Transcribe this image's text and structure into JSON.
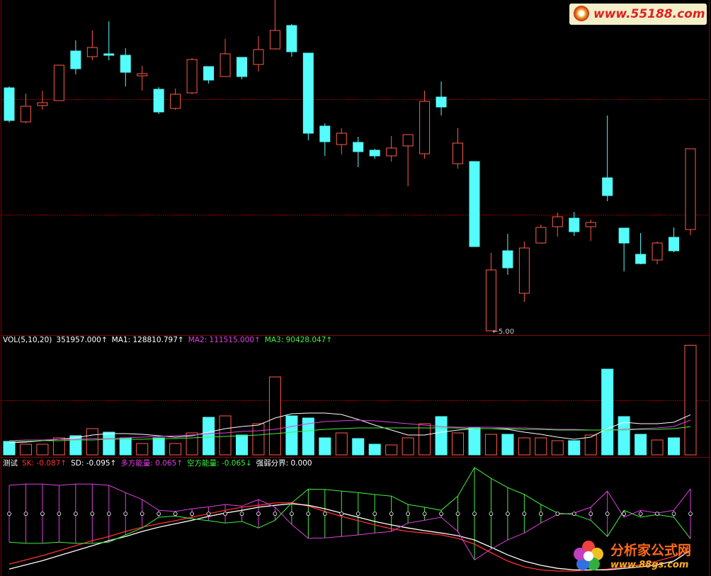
{
  "chart_data": [
    {
      "type": "candlestick",
      "annotation": "←5.00",
      "up_color": "#ff5a4a",
      "down_color": "#54fcfc",
      "ylim": [
        5.0,
        6.868
      ],
      "open": [
        6.372,
        6.18,
        6.272,
        6.3,
        6.58,
        6.548,
        6.564,
        6.556,
        6.44,
        6.364,
        6.256,
        6.344,
        6.492,
        6.436,
        6.544,
        6.504,
        6.592,
        6.724,
        6.568,
        6.156,
        6.052,
        6.064,
        6.02,
        5.988,
        6.044,
        6.0,
        6.32,
        5.944,
        5.956,
        5.0,
        5.452,
        5.212,
        5.496,
        5.588,
        5.636,
        5.588,
        5.864,
        5.58,
        5.432,
        5.4,
        5.528,
        5.572
      ],
      "close": [
        6.188,
        6.268,
        6.288,
        6.5,
        6.48,
        6.6,
        6.556,
        6.46,
        6.452,
        6.236,
        6.336,
        6.532,
        6.416,
        6.564,
        6.436,
        6.588,
        6.696,
        6.576,
        6.116,
        6.068,
        6.116,
        6.012,
        5.988,
        6.032,
        6.108,
        6.296,
        6.264,
        6.06,
        5.476,
        5.344,
        5.356,
        5.468,
        5.584,
        5.644,
        5.56,
        5.612,
        5.764,
        5.496,
        5.38,
        5.496,
        5.452,
        6.028
      ],
      "high": [
        6.38,
        6.34,
        6.356,
        6.5,
        6.64,
        6.696,
        6.748,
        6.596,
        6.496,
        6.376,
        6.368,
        6.54,
        6.492,
        6.648,
        6.544,
        6.664,
        6.868,
        6.732,
        6.568,
        6.172,
        6.144,
        6.096,
        6.028,
        6.1,
        6.108,
        6.356,
        6.408,
        6.144,
        5.956,
        5.44,
        5.548,
        5.504,
        5.6,
        5.668,
        5.672,
        5.628,
        6.216,
        5.58,
        5.552,
        5.504,
        5.584,
        6.028
      ],
      "low": [
        6.176,
        6.172,
        6.248,
        6.3,
        6.448,
        6.528,
        6.528,
        6.38,
        6.356,
        6.224,
        6.248,
        6.336,
        6.396,
        6.436,
        6.42,
        6.464,
        6.588,
        6.548,
        6.076,
        5.988,
        5.996,
        5.924,
        5.972,
        5.956,
        5.816,
        5.972,
        6.216,
        5.916,
        5.476,
        5.0,
        5.316,
        5.164,
        5.492,
        5.532,
        5.536,
        5.508,
        5.732,
        5.336,
        5.376,
        5.376,
        5.444,
        5.54
      ]
    },
    {
      "type": "bar",
      "title": "VOL(5,10,20)",
      "last_value_label": "351957.000↑",
      "ylim": [
        0,
        380000
      ],
      "values": [
        43225,
        34125,
        34125,
        54600,
        61425,
        84175,
        72800,
        54600,
        36400,
        54600,
        36400,
        70525,
        120575,
        125125,
        63700,
        100100,
        250250,
        125125,
        118300,
        54600,
        70525,
        52325,
        34125,
        31850,
        54600,
        100100,
        122850,
        70525,
        86450,
        65975,
        65975,
        54600,
        54600,
        45500,
        45500,
        63700,
        275275,
        122850,
        65975,
        47775,
        54600,
        351957
      ],
      "series": [
        {
          "label": "MA1: 128810.797↑",
          "color": "#ffffff",
          "values": [
            38675,
            40950,
            45500,
            50050,
            54600,
            63700,
            68250,
            68250,
            65975,
            61425,
            56875,
            61425,
            72800,
            84175,
            91000,
            95550,
            118300,
            131950,
            134225,
            134225,
            129675,
            113750,
            95550,
            79625,
            63700,
            63700,
            72800,
            79625,
            84175,
            84175,
            81900,
            72800,
            65975,
            56875,
            50050,
            56875,
            84175,
            104650,
            100100,
            100100,
            104650,
            128810.797
          ]
        },
        {
          "label": "MA2: 111515.000↑",
          "color": "#e040e0",
          "values": [
            45500,
            47775,
            47775,
            50050,
            50050,
            52325,
            52325,
            54600,
            56875,
            59150,
            61425,
            63700,
            68250,
            70525,
            75075,
            77350,
            81900,
            91000,
            100100,
            106925,
            109200,
            111475,
            109200,
            104650,
            100100,
            95550,
            91000,
            88725,
            88725,
            88725,
            86450,
            86450,
            84175,
            81900,
            81900,
            79625,
            79625,
            81900,
            84175,
            86450,
            91000,
            111515
          ]
        },
        {
          "label": "MA3: 90428.047↑",
          "color": "#40f040",
          "values": [
            43225,
            43225,
            45500,
            45500,
            47775,
            47775,
            50050,
            50050,
            50050,
            52325,
            52325,
            54600,
            56875,
            59150,
            61425,
            63700,
            68250,
            72800,
            77350,
            81900,
            84175,
            86450,
            86450,
            86450,
            86450,
            86450,
            86450,
            86450,
            84175,
            84175,
            84175,
            81900,
            81900,
            79625,
            79625,
            79625,
            79625,
            79625,
            81900,
            81900,
            84175,
            90428.047
          ]
        }
      ]
    },
    {
      "type": "line",
      "title": "测试",
      "ylim": [
        -0.16,
        0.12
      ],
      "series": [
        {
          "label": "SK: -0.087↑",
          "color": "#ff3030",
          "style": "line",
          "values": [
            -0.131,
            -0.12,
            -0.109,
            -0.096,
            -0.083,
            -0.07,
            -0.059,
            -0.046,
            -0.035,
            -0.026,
            -0.018,
            -0.009,
            0,
            0.009,
            0.017,
            0.022,
            0.028,
            0.029,
            0.02,
            0.006,
            -0.007,
            -0.018,
            -0.029,
            -0.039,
            -0.046,
            -0.05,
            -0.055,
            -0.064,
            -0.079,
            -0.101,
            -0.123,
            -0.138,
            -0.146,
            -0.149,
            -0.149,
            -0.147,
            -0.144,
            -0.138,
            -0.133,
            -0.123,
            -0.111,
            -0.087
          ]
        },
        {
          "label": "SD: -0.095↑",
          "color": "#ffffff",
          "style": "line",
          "values": [
            -0.144,
            -0.133,
            -0.122,
            -0.109,
            -0.096,
            -0.083,
            -0.07,
            -0.059,
            -0.046,
            -0.035,
            -0.026,
            -0.017,
            -0.007,
            0.002,
            0.009,
            0.017,
            0.022,
            0.026,
            0.022,
            0.013,
            0.002,
            -0.009,
            -0.02,
            -0.029,
            -0.037,
            -0.044,
            -0.05,
            -0.057,
            -0.068,
            -0.087,
            -0.107,
            -0.123,
            -0.134,
            -0.142,
            -0.146,
            -0.146,
            -0.146,
            -0.142,
            -0.138,
            -0.133,
            -0.123,
            -0.095
          ]
        },
        {
          "label": "多方能量: 0.065↑",
          "color": "#e040e0",
          "style": "envelope",
          "values": [
            0.074,
            0.077,
            0.077,
            0.074,
            0.077,
            0.077,
            0.074,
            0.055,
            0.037,
            0.009,
            0.006,
            0.013,
            0.018,
            0.024,
            0.02,
            0.037,
            0.017,
            -0.028,
            -0.064,
            -0.063,
            -0.059,
            -0.055,
            -0.05,
            -0.046,
            -0.024,
            -0.017,
            -0.009,
            -0.046,
            -0.12,
            -0.092,
            -0.068,
            -0.05,
            -0.024,
            -0.002,
            0.002,
            0.017,
            0.059,
            -0.009,
            0.009,
            0.002,
            0.009,
            0.065
          ]
        },
        {
          "label": "空方能量: -0.065↓",
          "color": "#40f040",
          "style": "envelope",
          "values": [
            -0.074,
            -0.077,
            -0.077,
            -0.074,
            -0.077,
            -0.077,
            -0.074,
            -0.055,
            -0.037,
            -0.009,
            -0.006,
            -0.013,
            -0.018,
            -0.024,
            -0.02,
            -0.037,
            -0.017,
            0.028,
            0.064,
            0.063,
            0.059,
            0.055,
            0.05,
            0.046,
            0.024,
            0.017,
            0.009,
            0.046,
            0.12,
            0.092,
            0.068,
            0.05,
            0.024,
            0.002,
            -0.002,
            -0.017,
            -0.059,
            0.009,
            -0.009,
            -0.002,
            -0.009,
            -0.065
          ]
        },
        {
          "label": "强弱分界: 0.000",
          "color": "#ffffff",
          "style": "dots",
          "values": [
            0,
            0,
            0,
            0,
            0,
            0,
            0,
            0,
            0,
            0,
            0,
            0,
            0,
            0,
            0,
            0,
            0,
            0,
            0,
            0,
            0,
            0,
            0,
            0,
            0,
            0,
            0,
            0,
            0,
            0,
            0,
            0,
            0,
            0,
            0,
            0,
            0,
            0,
            0,
            0,
            0,
            0
          ]
        }
      ]
    }
  ],
  "watermarks": {
    "top": "www.55188.com",
    "bottom_title": "分析家公式网",
    "bottom_url": "www.88gs.com"
  }
}
